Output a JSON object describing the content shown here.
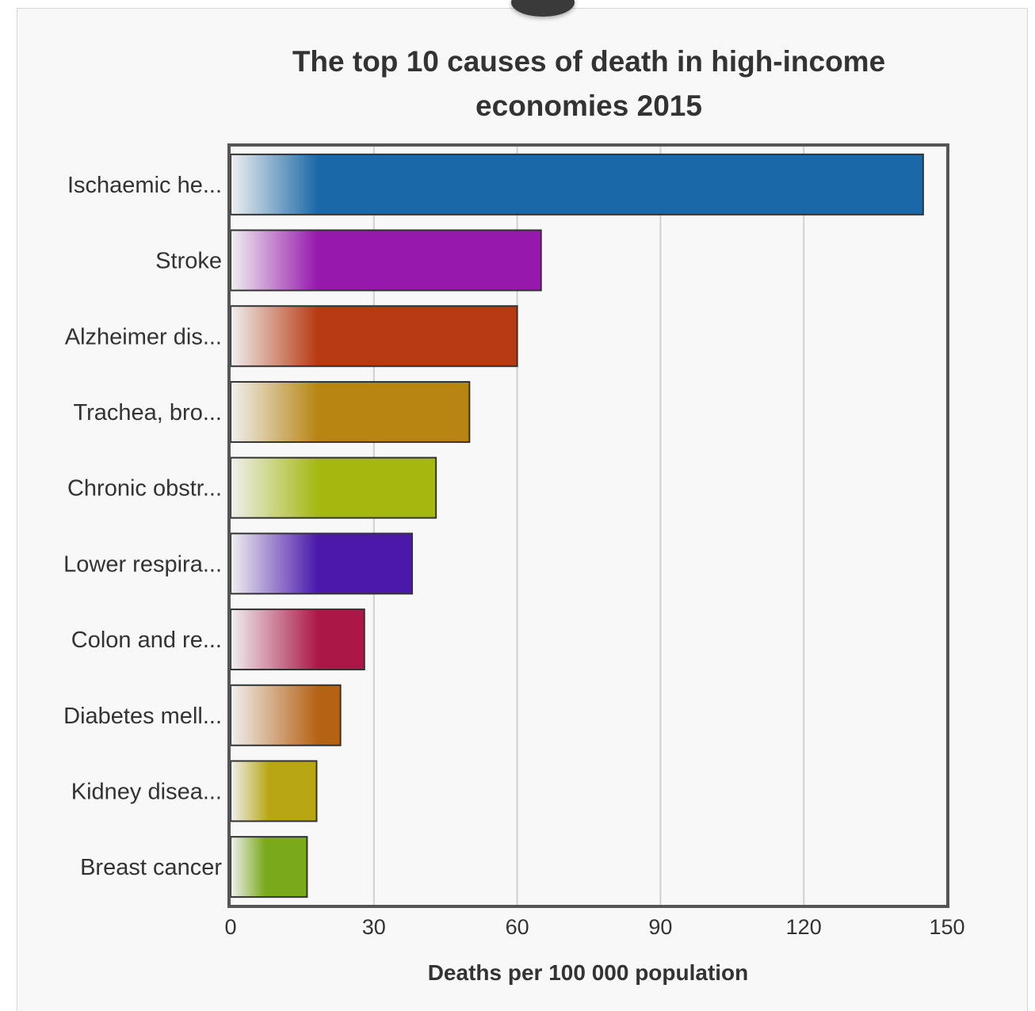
{
  "chart_data": {
    "type": "bar",
    "orientation": "horizontal",
    "title": "The top 10 causes of death in high-income economies 2015",
    "xlabel": "Deaths per 100 000 population",
    "ylabel": "",
    "xlim": [
      0,
      150
    ],
    "x_ticks": [
      "0",
      "30",
      "60",
      "90",
      "120",
      "150"
    ],
    "grid": true,
    "categories": [
      "Ischaemic he...",
      "Stroke",
      "Alzheimer dis...",
      "Trachea, bro...",
      "Chronic obstr...",
      "Lower respira...",
      "Colon and re...",
      "Diabetes mell...",
      "Kidney disea...",
      "Breast cancer"
    ],
    "values": [
      145,
      65,
      60,
      50,
      43,
      38,
      28,
      23,
      18,
      16
    ],
    "colors": [
      "#1b68a8",
      "#9718ad",
      "#b73a12",
      "#b88512",
      "#a5b810",
      "#4a18ab",
      "#ab1848",
      "#b66214",
      "#b8a612",
      "#7aaa1c"
    ]
  }
}
